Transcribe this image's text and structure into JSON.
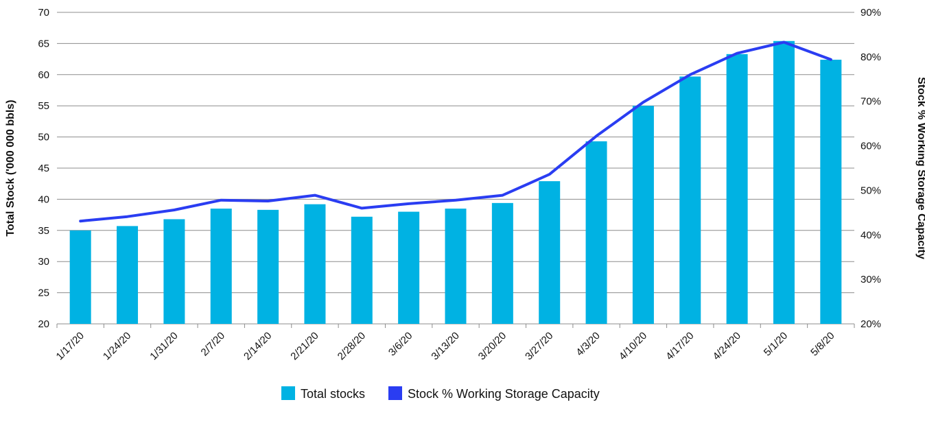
{
  "chart_data": {
    "type": "bar",
    "categories": [
      "1/17/20",
      "1/24/20",
      "1/31/20",
      "2/7/20",
      "2/14/20",
      "2/21/20",
      "2/28/20",
      "3/6/20",
      "3/13/20",
      "3/20/20",
      "3/27/20",
      "4/3/20",
      "4/10/20",
      "4/17/20",
      "4/24/20",
      "5/1/20",
      "5/8/20"
    ],
    "series": [
      {
        "name": "Total stocks",
        "type": "bar",
        "axis": "left",
        "color": "#00b2e3",
        "values": [
          35.0,
          35.7,
          36.8,
          38.5,
          38.3,
          39.2,
          37.2,
          38.0,
          38.5,
          39.4,
          42.9,
          49.3,
          55.0,
          59.7,
          63.3,
          65.4,
          62.4
        ]
      },
      {
        "name": "Stock % Working Storage Capacity",
        "type": "line",
        "axis": "right",
        "color": "#2a3df2",
        "values": [
          43.1,
          44.1,
          45.6,
          47.8,
          47.6,
          48.9,
          46.0,
          47.0,
          47.8,
          48.9,
          53.6,
          62.2,
          69.8,
          76.0,
          80.8,
          83.3,
          79.4
        ]
      }
    ],
    "ylabel": "Total Stock ('000 000 bbls)",
    "ylabel_right": "Stock % Working Storage Capacity",
    "ylim": [
      20,
      70
    ],
    "ylim_right": [
      20,
      90
    ],
    "yticks": [
      "20",
      "25",
      "30",
      "35",
      "40",
      "45",
      "50",
      "55",
      "60",
      "65",
      "70"
    ],
    "yticks_right": [
      "20%",
      "30%",
      "40%",
      "50%",
      "60%",
      "70%",
      "80%",
      "90%"
    ],
    "grid": true,
    "legend": "bottom-center"
  }
}
